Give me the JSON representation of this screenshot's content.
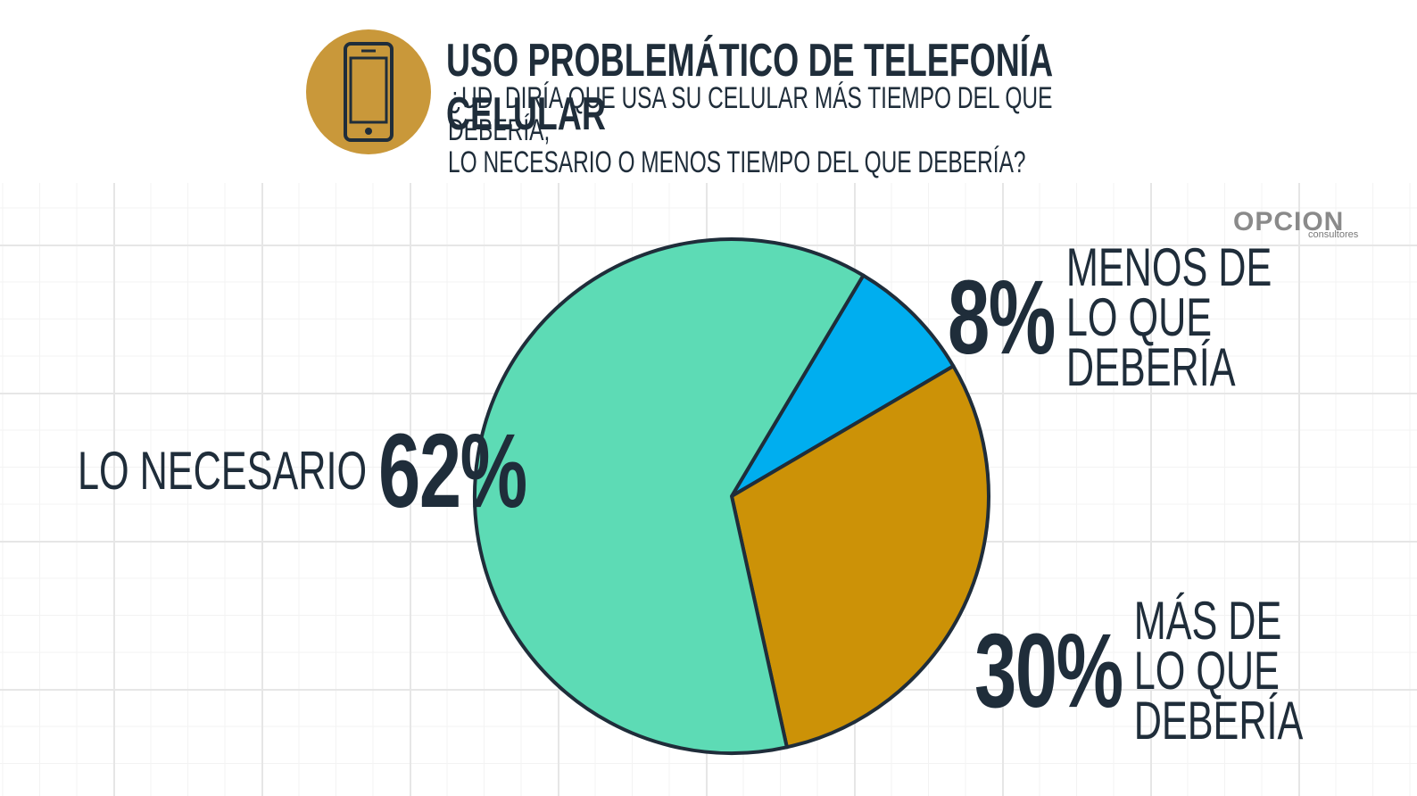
{
  "chart_data": {
    "type": "pie",
    "title": "USO PROBLEMÁTICO DE TELEFONÍA CELULAR",
    "subtitle": "¿UD. DIRÍA QUE USA SU CELULAR MÁS TIEMPO DEL QUE DEBERÍA,\nLO NECESARIO O MENOS TIEMPO DEL QUE DEBERÍA?",
    "categories": [
      "MENOS DE\nLO QUE DEBERÍA",
      "MÁS DE\nLO QUE DEBERÍA",
      "LO NECESARIO"
    ],
    "values": [
      8,
      30,
      62
    ],
    "value_labels": [
      "8%",
      "30%",
      "62%"
    ],
    "colors": [
      "#00aeef",
      "#cc9207",
      "#5ddbb5"
    ]
  },
  "logo": {
    "name": "OPCION",
    "tagline": "consultores"
  }
}
